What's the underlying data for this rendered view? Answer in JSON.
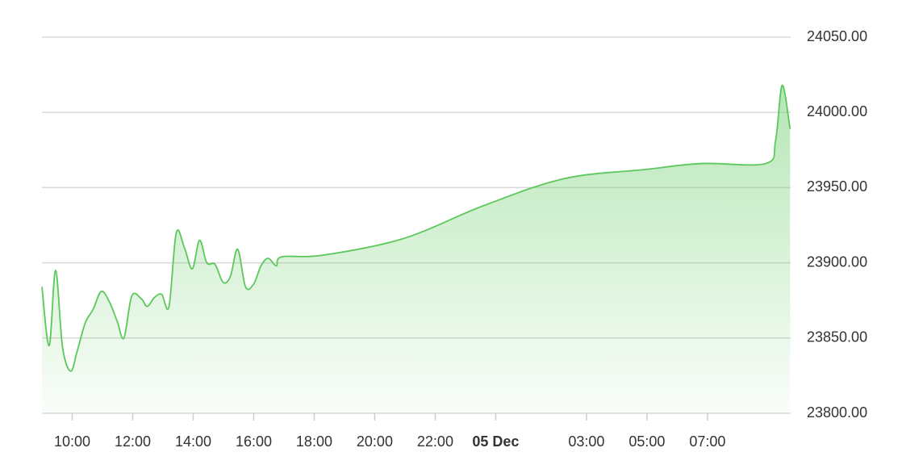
{
  "chart_data": {
    "type": "area",
    "color": "#5cc85c",
    "grid": true,
    "x": [
      9.0,
      9.24,
      9.45,
      9.68,
      9.95,
      10.16,
      10.43,
      10.69,
      10.96,
      11.23,
      11.49,
      11.71,
      11.97,
      12.29,
      12.48,
      12.72,
      12.96,
      13.2,
      13.44,
      13.71,
      13.97,
      14.21,
      14.45,
      14.72,
      14.99,
      15.23,
      15.47,
      15.73,
      16.0,
      16.24,
      16.48,
      16.75,
      16.93,
      18.27,
      20.93,
      23.6,
      26.27,
      28.93,
      30.8,
      32.93,
      33.25,
      33.47,
      33.73
    ],
    "values": [
      23884,
      23845,
      23895,
      23844,
      23828,
      23841,
      23860,
      23869,
      23881,
      23874,
      23861,
      23850,
      23878,
      23876,
      23871,
      23877,
      23879,
      23871,
      23920,
      23910,
      23896,
      23915,
      23900,
      23899,
      23887,
      23891,
      23909,
      23884,
      23886,
      23898,
      23903,
      23898,
      23904,
      23905,
      23916,
      23938,
      23956,
      23962,
      23966,
      23966,
      23981,
      24018,
      23989
    ],
    "xlim": [
      9.0,
      33.75
    ],
    "xticks": [
      {
        "value": 10,
        "label": "10:00"
      },
      {
        "value": 12,
        "label": "12:00"
      },
      {
        "value": 14,
        "label": "14:00"
      },
      {
        "value": 16,
        "label": "16:00"
      },
      {
        "value": 18,
        "label": "18:00"
      },
      {
        "value": 20,
        "label": "20:00"
      },
      {
        "value": 22,
        "label": "22:00"
      },
      {
        "value": 24,
        "label": "05 Dec"
      },
      {
        "value": 27,
        "label": "03:00"
      },
      {
        "value": 29,
        "label": "05:00"
      },
      {
        "value": 31,
        "label": "07:00"
      }
    ],
    "ylim": [
      23800,
      24050
    ],
    "yticks": [
      {
        "value": 23800,
        "label": "23800.00"
      },
      {
        "value": 23850,
        "label": "23850.00"
      },
      {
        "value": 23900,
        "label": "23900.00"
      },
      {
        "value": 23950,
        "label": "23950.00"
      },
      {
        "value": 24000,
        "label": "24000.00"
      },
      {
        "value": 24050,
        "label": "24050.00"
      }
    ]
  }
}
